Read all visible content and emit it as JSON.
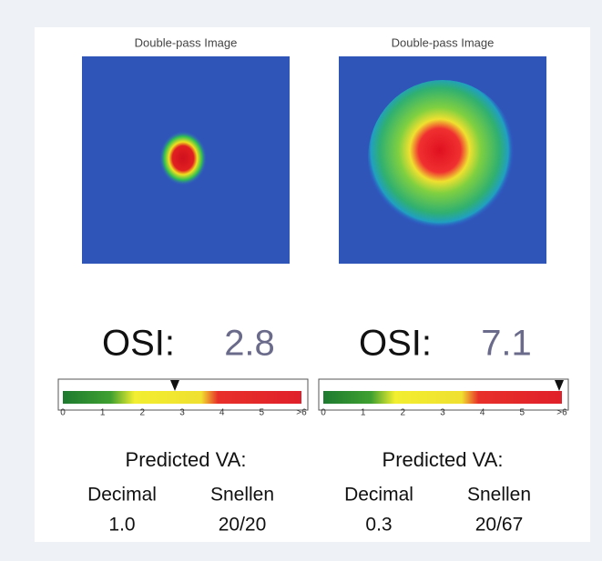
{
  "panels": [
    {
      "image_title": "Double-pass Image",
      "osi_label": "OSI:",
      "osi_value": "2.8",
      "scale_labels": [
        "0",
        "1",
        "2",
        "3",
        "4",
        "5",
        ">6"
      ],
      "va_title": "Predicted VA:",
      "decimal_label": "Decimal",
      "decimal_value": "1.0",
      "snellen_label": "Snellen",
      "snellen_value": "20/20"
    },
    {
      "image_title": "Double-pass Image",
      "osi_label": "OSI:",
      "osi_value": "7.1",
      "scale_labels": [
        "0",
        "1",
        "2",
        "3",
        "4",
        "5",
        ">6"
      ],
      "va_title": "Predicted VA:",
      "decimal_label": "Decimal",
      "decimal_value": "0.3",
      "snellen_label": "Snellen",
      "snellen_value": "20/67"
    }
  ]
}
